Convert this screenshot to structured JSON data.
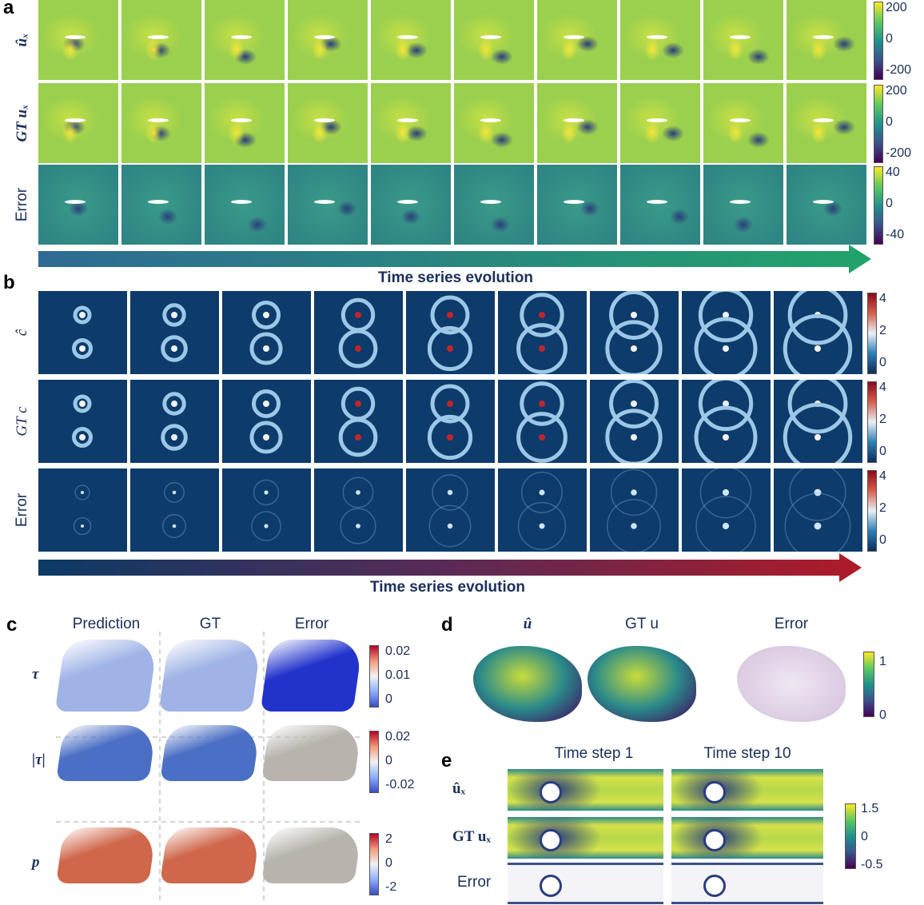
{
  "panel_a": {
    "label": "a",
    "rows": [
      "ûₓ",
      "GT uₓ",
      "Error"
    ],
    "colorbars": [
      [
        200,
        0,
        -200
      ],
      [
        200,
        0,
        -200
      ],
      [
        40,
        0,
        -40
      ]
    ],
    "arrow_label": "Time series evolution"
  },
  "panel_b": {
    "label": "b",
    "rows": [
      "ĉ",
      "GT c",
      "Error"
    ],
    "colorbars": [
      [
        4,
        2,
        0
      ],
      [
        4,
        2,
        0
      ],
      [
        4,
        2,
        0
      ]
    ],
    "arrow_label": "Time series evolution"
  },
  "panel_c": {
    "label": "c",
    "columns": [
      "Prediction",
      "GT",
      "Error"
    ],
    "rows": [
      "τ",
      "|τ|",
      "p"
    ],
    "colorbars": [
      [
        0.02,
        0.01,
        0
      ],
      [
        0.02,
        0,
        -0.02
      ],
      [
        2,
        0,
        -2
      ]
    ]
  },
  "panel_d": {
    "label": "d",
    "columns": [
      "û",
      "GT u",
      "Error"
    ],
    "colorbar": [
      1,
      0
    ]
  },
  "panel_e": {
    "label": "e",
    "columns": [
      "Time step 1",
      "Time step 10"
    ],
    "rows": [
      "ûₓ",
      "GT uₓ",
      "Error"
    ],
    "colorbar": [
      1.5,
      0,
      -0.5
    ]
  }
}
